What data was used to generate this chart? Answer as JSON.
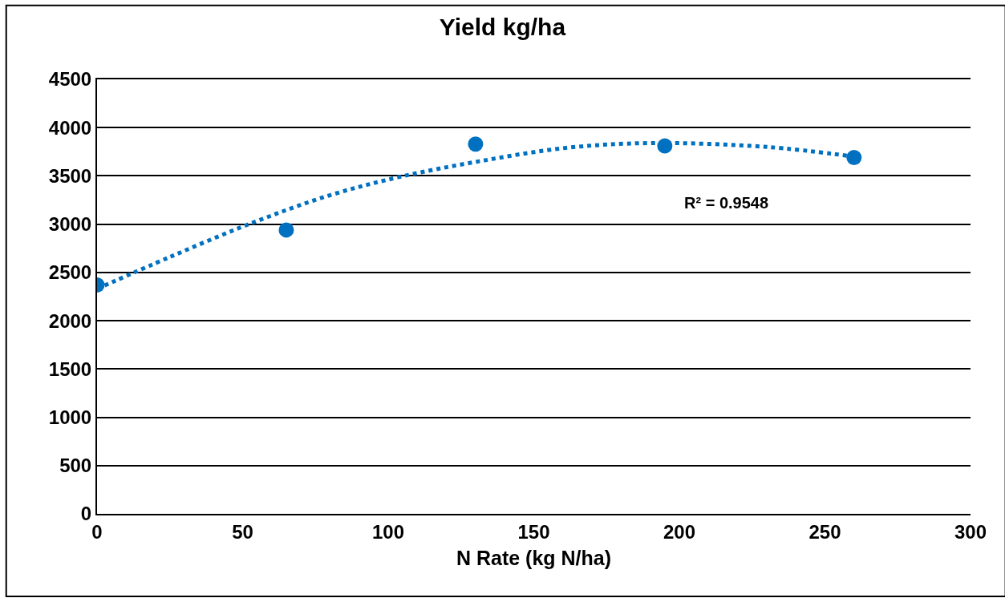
{
  "chart_data": {
    "type": "scatter",
    "title": "Yield kg/ha",
    "xlabel": "N Rate (kg N/ha)",
    "x": [
      0,
      65,
      130,
      195,
      260
    ],
    "series": [
      {
        "color": "#0070c0",
        "marker": "circle",
        "values": [
          2370,
          2940,
          3830,
          3810,
          3690
        ]
      },
      {
        "type": "line",
        "color": "#0070c0",
        "line_style": "dotted",
        "x": [
          0,
          25,
          53,
          80,
          104,
          131,
          161,
          190,
          230,
          260
        ],
        "values": [
          2330,
          2660,
          3010,
          3300,
          3490,
          3650,
          3790,
          3840,
          3800,
          3700
        ]
      }
    ],
    "annotations": [
      "R² = 0.9548"
    ],
    "xlim": [
      0,
      300
    ],
    "xticks": [
      0,
      50,
      100,
      150,
      200,
      250,
      300
    ],
    "ylim": [
      0,
      4500
    ],
    "yticks": [
      0,
      500,
      1000,
      1500,
      2000,
      2500,
      3000,
      3500,
      4000,
      4500
    ],
    "grid": "y"
  }
}
